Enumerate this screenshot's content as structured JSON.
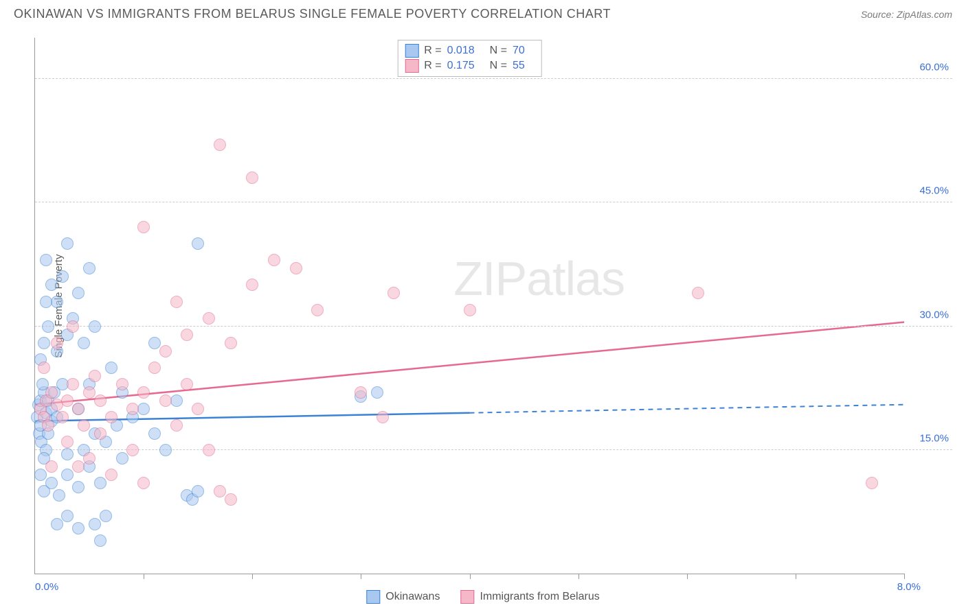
{
  "title": "OKINAWAN VS IMMIGRANTS FROM BELARUS SINGLE FEMALE POVERTY CORRELATION CHART",
  "source": "Source: ZipAtlas.com",
  "ylabel": "Single Female Poverty",
  "watermark": "ZIPatlas",
  "chart": {
    "type": "scatter",
    "xlim": [
      0,
      8
    ],
    "ylim": [
      0,
      65
    ],
    "xtick_positions": [
      0,
      1,
      2,
      3,
      4,
      5,
      6,
      7,
      8
    ],
    "xtick_labels": {
      "0": "0.0%",
      "8": "8.0%"
    },
    "ytick_positions": [
      15,
      30,
      45,
      60
    ],
    "ytick_labels": [
      "15.0%",
      "30.0%",
      "45.0%",
      "60.0%"
    ],
    "grid_color": "#cccccc",
    "axis_color": "#999999",
    "background_color": "#ffffff",
    "marker_radius": 9,
    "marker_opacity": 0.55,
    "series": [
      {
        "name": "Okinawans",
        "color_fill": "#a8c8f0",
        "color_stroke": "#3b82d6",
        "r": "0.018",
        "n": "70",
        "trend": {
          "y_at_x0": 18.5,
          "y_at_xmax": 20.5,
          "solid_until_x": 4.0,
          "stroke_width": 2.5
        },
        "points": [
          [
            0.02,
            19
          ],
          [
            0.03,
            20.5
          ],
          [
            0.04,
            17
          ],
          [
            0.05,
            21
          ],
          [
            0.05,
            18
          ],
          [
            0.08,
            22
          ],
          [
            0.06,
            16
          ],
          [
            0.07,
            23
          ],
          [
            0.1,
            19.5
          ],
          [
            0.12,
            21
          ],
          [
            0.15,
            18.5
          ],
          [
            0.1,
            15
          ],
          [
            0.12,
            17
          ],
          [
            0.08,
            14
          ],
          [
            0.15,
            20
          ],
          [
            0.18,
            22
          ],
          [
            0.2,
            19
          ],
          [
            0.25,
            23
          ],
          [
            0.05,
            26
          ],
          [
            0.08,
            28
          ],
          [
            0.12,
            30
          ],
          [
            0.2,
            27
          ],
          [
            0.3,
            29
          ],
          [
            0.35,
            31
          ],
          [
            0.4,
            34
          ],
          [
            0.45,
            28
          ],
          [
            0.1,
            38
          ],
          [
            0.25,
            36
          ],
          [
            0.08,
            10
          ],
          [
            0.15,
            11
          ],
          [
            0.22,
            9.5
          ],
          [
            0.3,
            12
          ],
          [
            0.4,
            10.5
          ],
          [
            0.5,
            13
          ],
          [
            0.6,
            11
          ],
          [
            0.45,
            15
          ],
          [
            0.55,
            17
          ],
          [
            0.65,
            16
          ],
          [
            0.75,
            18
          ],
          [
            0.8,
            14
          ],
          [
            0.9,
            19
          ],
          [
            1.0,
            20
          ],
          [
            1.1,
            17
          ],
          [
            1.2,
            15
          ],
          [
            1.3,
            21
          ],
          [
            1.4,
            9.5
          ],
          [
            1.45,
            9
          ],
          [
            1.5,
            10
          ],
          [
            0.65,
            7
          ],
          [
            0.55,
            6
          ],
          [
            0.4,
            5.5
          ],
          [
            0.3,
            7
          ],
          [
            0.2,
            6
          ],
          [
            0.6,
            4
          ],
          [
            0.3,
            14.5
          ],
          [
            0.5,
            23
          ],
          [
            0.4,
            20
          ],
          [
            1.1,
            28
          ],
          [
            0.3,
            40
          ],
          [
            0.15,
            35
          ],
          [
            0.5,
            37
          ],
          [
            0.55,
            30
          ],
          [
            0.2,
            33
          ],
          [
            0.1,
            33
          ],
          [
            0.7,
            25
          ],
          [
            0.8,
            22
          ],
          [
            1.5,
            40
          ],
          [
            3.0,
            21.5
          ],
          [
            3.15,
            22
          ],
          [
            0.05,
            12
          ]
        ]
      },
      {
        "name": "Immigrants from Belarus",
        "color_fill": "#f5b8c8",
        "color_stroke": "#e66a8f",
        "r": "0.175",
        "n": "55",
        "trend": {
          "y_at_x0": 20.5,
          "y_at_xmax": 30.5,
          "solid_until_x": 8.0,
          "stroke_width": 2.5
        },
        "points": [
          [
            0.05,
            20
          ],
          [
            0.08,
            19
          ],
          [
            0.1,
            21
          ],
          [
            0.12,
            18
          ],
          [
            0.15,
            22
          ],
          [
            0.2,
            20.5
          ],
          [
            0.25,
            19
          ],
          [
            0.3,
            21
          ],
          [
            0.35,
            23
          ],
          [
            0.4,
            20
          ],
          [
            0.45,
            18
          ],
          [
            0.5,
            22
          ],
          [
            0.55,
            24
          ],
          [
            0.6,
            21
          ],
          [
            0.7,
            19
          ],
          [
            0.8,
            23
          ],
          [
            0.9,
            20
          ],
          [
            1.0,
            22
          ],
          [
            1.1,
            25
          ],
          [
            1.2,
            21
          ],
          [
            1.3,
            18
          ],
          [
            1.4,
            23
          ],
          [
            1.5,
            20
          ],
          [
            1.6,
            15
          ],
          [
            1.7,
            10
          ],
          [
            1.8,
            9
          ],
          [
            0.5,
            14
          ],
          [
            0.7,
            12
          ],
          [
            0.9,
            15
          ],
          [
            1.0,
            11
          ],
          [
            0.3,
            16
          ],
          [
            0.4,
            13
          ],
          [
            0.6,
            17
          ],
          [
            1.2,
            27
          ],
          [
            1.4,
            29
          ],
          [
            1.6,
            31
          ],
          [
            1.8,
            28
          ],
          [
            2.0,
            35
          ],
          [
            2.2,
            38
          ],
          [
            2.4,
            37
          ],
          [
            1.3,
            33
          ],
          [
            1.0,
            42
          ],
          [
            1.7,
            52
          ],
          [
            2.0,
            48
          ],
          [
            2.6,
            32
          ],
          [
            3.0,
            22
          ],
          [
            3.2,
            19
          ],
          [
            3.3,
            34
          ],
          [
            4.0,
            32
          ],
          [
            6.1,
            34
          ],
          [
            7.7,
            11
          ],
          [
            0.08,
            25
          ],
          [
            0.2,
            28
          ],
          [
            0.35,
            30
          ],
          [
            0.15,
            13
          ]
        ]
      }
    ]
  },
  "legend_top": [
    {
      "series_index": 0,
      "r_label": "R =",
      "n_label": "N ="
    },
    {
      "series_index": 1,
      "r_label": "R =",
      "n_label": "N ="
    }
  ],
  "legend_bottom": [
    {
      "series_index": 0
    },
    {
      "series_index": 1
    }
  ]
}
